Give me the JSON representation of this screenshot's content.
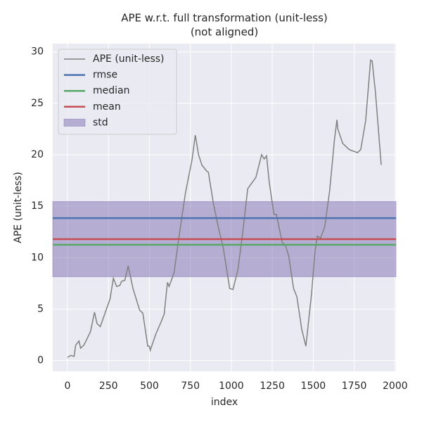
{
  "chart_data": {
    "type": "line",
    "title": "APE w.r.t. full transformation (unit-less)",
    "subtitle": "(not aligned)",
    "x_label": "index",
    "y_label": "APE (unit-less)",
    "xlim": [
      -90,
      2005
    ],
    "ylim": [
      -1.05,
      30.8
    ],
    "xticks": [
      0,
      250,
      500,
      750,
      1000,
      1250,
      1500,
      1750,
      2000
    ],
    "yticks": [
      0,
      5,
      10,
      15,
      20,
      25,
      30
    ],
    "grid": true,
    "legend": "upper left",
    "series": [
      {
        "name": "APE (unit-less)",
        "color": "#808080",
        "x": [
          0,
          20,
          40,
          50,
          70,
          80,
          100,
          140,
          165,
          180,
          200,
          220,
          260,
          280,
          300,
          320,
          330,
          350,
          370,
          400,
          440,
          460,
          490,
          500,
          505,
          540,
          570,
          590,
          610,
          620,
          650,
          680,
          720,
          760,
          780,
          800,
          820,
          850,
          860,
          890,
          920,
          950,
          990,
          1010,
          1040,
          1070,
          1100,
          1150,
          1185,
          1200,
          1215,
          1230,
          1260,
          1275,
          1310,
          1330,
          1350,
          1380,
          1400,
          1430,
          1455,
          1490,
          1510,
          1525,
          1545,
          1570,
          1600,
          1630,
          1645,
          1650,
          1680,
          1720,
          1770,
          1790,
          1820,
          1850,
          1860,
          1880,
          1915
        ],
        "values": [
          0.3,
          0.5,
          0.4,
          1.5,
          1.9,
          1.2,
          1.5,
          2.8,
          4.7,
          3.6,
          3.3,
          4.2,
          6.0,
          8.0,
          7.2,
          7.3,
          7.7,
          7.8,
          9.2,
          7.0,
          4.9,
          4.6,
          1.4,
          1.4,
          1.0,
          2.6,
          3.7,
          4.5,
          7.6,
          7.2,
          8.5,
          12.0,
          16.3,
          19.5,
          21.9,
          20.0,
          19.0,
          18.4,
          18.3,
          15.3,
          13.0,
          11.0,
          7.0,
          6.9,
          8.8,
          12.5,
          16.7,
          17.8,
          20.0,
          19.6,
          19.9,
          17.5,
          14.2,
          14.2,
          11.5,
          11.2,
          10.2,
          7.0,
          6.2,
          3.0,
          1.4,
          6.5,
          10.5,
          12.1,
          11.9,
          13.0,
          16.5,
          21.5,
          23.4,
          22.5,
          21.1,
          20.5,
          20.2,
          20.5,
          23.3,
          29.2,
          29.1,
          26.0,
          19.0
        ]
      }
    ],
    "stats": [
      {
        "name": "rmse",
        "color": "#4c72b0",
        "value": 13.84
      },
      {
        "name": "median",
        "color": "#55a868",
        "value": 11.25
      },
      {
        "name": "mean",
        "color": "#c44e52",
        "value": 11.8
      }
    ],
    "std": {
      "name": "std",
      "color": "#8172b2",
      "value": 3.65
    }
  }
}
